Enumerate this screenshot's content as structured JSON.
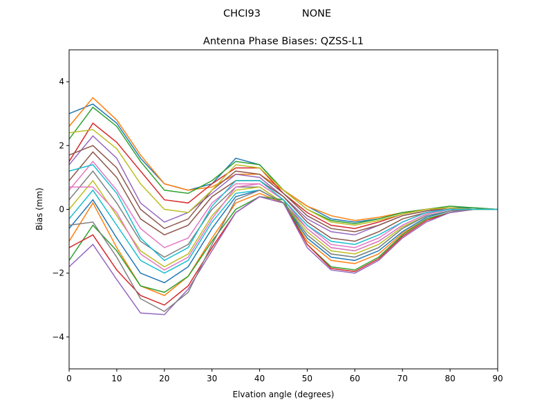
{
  "chart_data": {
    "type": "line",
    "suptitle_left": "CHCI93",
    "suptitle_right": "NONE",
    "title": "Antenna Phase Biases: QZSS-L1",
    "xlabel": "Elvation angle (degrees)",
    "ylabel": "Bias (mm)",
    "xlim": [
      0,
      90
    ],
    "ylim": [
      -5,
      5
    ],
    "xticks": [
      0,
      10,
      20,
      30,
      40,
      50,
      60,
      70,
      80,
      90
    ],
    "yticks": [
      -4,
      -2,
      0,
      2,
      4
    ],
    "ytick_labels": [
      "−4",
      "−2",
      "0",
      "2",
      "4"
    ],
    "grid": false,
    "x": [
      0,
      5,
      10,
      15,
      20,
      25,
      30,
      35,
      40,
      45,
      50,
      55,
      60,
      65,
      70,
      75,
      80,
      85,
      90
    ],
    "colors": [
      "#1f77b4",
      "#ff7f0e",
      "#2ca02c",
      "#d62728",
      "#9467bd",
      "#8c564b",
      "#e377c2",
      "#7f7f7f",
      "#bcbd22",
      "#17becf"
    ],
    "series": [
      {
        "values": [
          3.0,
          3.3,
          2.7,
          1.6,
          0.8,
          0.6,
          0.8,
          1.6,
          1.4,
          0.6,
          0.1,
          -0.3,
          -0.4,
          -0.3,
          -0.1,
          0.0,
          0.05,
          0.05,
          0
        ]
      },
      {
        "values": [
          2.6,
          3.5,
          2.8,
          1.7,
          0.8,
          0.6,
          0.7,
          1.1,
          1.1,
          0.6,
          0.1,
          -0.2,
          -0.35,
          -0.25,
          -0.1,
          0.0,
          0.05,
          0.0,
          0
        ]
      },
      {
        "values": [
          2.2,
          3.2,
          2.6,
          1.5,
          0.6,
          0.5,
          0.9,
          1.5,
          1.4,
          0.6,
          0.0,
          -0.35,
          -0.45,
          -0.3,
          -0.1,
          0.0,
          0.1,
          0.05,
          0
        ]
      },
      {
        "values": [
          1.5,
          2.7,
          2.1,
          1.2,
          0.3,
          0.2,
          0.8,
          1.3,
          1.3,
          0.5,
          -0.1,
          -0.5,
          -0.6,
          -0.4,
          -0.15,
          0.0,
          0.05,
          0.0,
          0
        ]
      },
      {
        "values": [
          1.4,
          2.3,
          1.6,
          0.2,
          -0.4,
          -0.1,
          0.5,
          1.1,
          1.0,
          0.4,
          -0.3,
          -0.7,
          -0.8,
          -0.5,
          -0.2,
          -0.05,
          0.0,
          0.0,
          0
        ]
      },
      {
        "values": [
          0.9,
          1.8,
          1.0,
          -0.3,
          -0.8,
          -0.5,
          0.4,
          0.9,
          0.9,
          0.4,
          -0.4,
          -0.9,
          -1.0,
          -0.7,
          -0.3,
          -0.1,
          0.0,
          0.0,
          0
        ]
      },
      {
        "values": [
          0.6,
          1.5,
          0.6,
          -0.6,
          -1.2,
          -0.9,
          0.2,
          0.8,
          0.8,
          0.3,
          -0.5,
          -1.1,
          -1.2,
          -0.9,
          -0.4,
          -0.1,
          0.0,
          0.0,
          0
        ]
      },
      {
        "values": [
          0.3,
          1.2,
          0.2,
          -1.0,
          -1.5,
          -1.1,
          0.0,
          0.7,
          0.7,
          0.2,
          -0.6,
          -1.2,
          -1.3,
          -1.0,
          -0.5,
          -0.15,
          0.0,
          0.0,
          0
        ]
      },
      {
        "values": [
          0.0,
          0.9,
          -0.2,
          -1.3,
          -1.8,
          -1.4,
          -0.2,
          0.6,
          0.7,
          0.2,
          -0.7,
          -1.3,
          -1.4,
          -1.1,
          -0.55,
          -0.2,
          -0.05,
          0.0,
          0
        ]
      },
      {
        "values": [
          -0.3,
          0.6,
          -0.5,
          -1.6,
          -2.0,
          -1.6,
          -0.4,
          0.5,
          0.6,
          0.2,
          -0.8,
          -1.4,
          -1.5,
          -1.2,
          -0.6,
          -0.2,
          -0.05,
          0.0,
          0
        ]
      },
      {
        "values": [
          -0.6,
          0.3,
          -0.9,
          -2.0,
          -2.3,
          -1.8,
          -0.6,
          0.4,
          0.6,
          0.2,
          -0.9,
          -1.5,
          -1.6,
          -1.3,
          -0.7,
          -0.25,
          -0.05,
          0.0,
          0
        ]
      },
      {
        "values": [
          -1.0,
          0.2,
          -1.2,
          -2.4,
          -2.7,
          -2.1,
          -0.9,
          0.2,
          0.5,
          0.2,
          -1.0,
          -1.6,
          -1.7,
          -1.4,
          -0.75,
          -0.3,
          -0.1,
          0.0,
          0
        ]
      },
      {
        "values": [
          -1.6,
          -0.5,
          -1.3,
          -2.4,
          -2.6,
          -2.1,
          -1.0,
          0.0,
          0.4,
          0.3,
          -1.1,
          -1.8,
          -1.9,
          -1.5,
          -0.8,
          -0.3,
          -0.1,
          0.0,
          0
        ]
      },
      {
        "values": [
          -1.2,
          -0.8,
          -1.9,
          -2.7,
          -3.0,
          -2.4,
          -1.2,
          -0.1,
          0.4,
          0.2,
          -1.1,
          -1.85,
          -1.95,
          -1.55,
          -0.85,
          -0.35,
          -0.1,
          0.0,
          0
        ]
      },
      {
        "values": [
          -1.8,
          -1.1,
          -2.2,
          -3.25,
          -3.3,
          -2.5,
          -1.3,
          -0.1,
          0.4,
          0.2,
          -1.2,
          -1.9,
          -2.0,
          -1.6,
          -0.9,
          -0.4,
          -0.1,
          0.0,
          0
        ]
      },
      {
        "values": [
          1.7,
          2.0,
          1.3,
          0.0,
          -0.6,
          -0.3,
          0.6,
          1.2,
          1.1,
          0.5,
          -0.2,
          -0.6,
          -0.7,
          -0.5,
          -0.2,
          -0.05,
          0.05,
          0.0,
          0
        ]
      },
      {
        "values": [
          0.7,
          0.7,
          -0.1,
          -1.4,
          -1.9,
          -1.5,
          -0.3,
          0.7,
          0.8,
          0.3,
          -0.6,
          -1.2,
          -1.3,
          -1.0,
          -0.5,
          -0.15,
          0.0,
          0.0,
          0
        ]
      },
      {
        "values": [
          -0.5,
          -0.4,
          -1.5,
          -2.8,
          -3.2,
          -2.6,
          -1.1,
          0.3,
          0.6,
          0.2,
          -0.8,
          -1.4,
          -1.5,
          -1.2,
          -0.6,
          -0.2,
          -0.05,
          0.0,
          0
        ]
      },
      {
        "values": [
          2.4,
          2.5,
          1.9,
          0.8,
          0.0,
          -0.1,
          0.6,
          1.4,
          1.3,
          0.6,
          0.0,
          -0.4,
          -0.5,
          -0.35,
          -0.15,
          0.0,
          0.05,
          0.0,
          0
        ]
      },
      {
        "values": [
          1.2,
          1.4,
          0.5,
          -0.9,
          -1.6,
          -1.2,
          0.1,
          0.9,
          0.9,
          0.3,
          -0.5,
          -1.0,
          -1.1,
          -0.8,
          -0.4,
          -0.1,
          0.0,
          0.0,
          0
        ]
      }
    ]
  }
}
